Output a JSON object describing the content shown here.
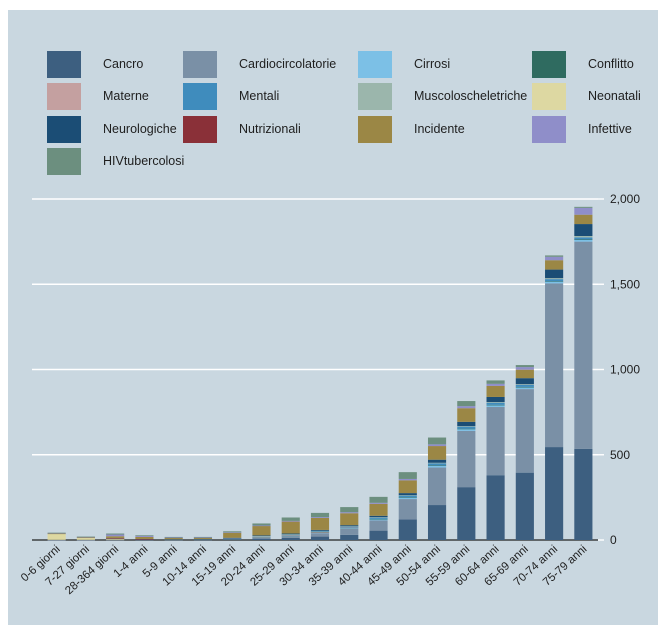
{
  "chart_data": {
    "type": "bar",
    "stacked": true,
    "categories": [
      "0-6 giorni",
      "7-27 giorni",
      "28-364 giorni",
      "1-4 anni",
      "5-9 anni",
      "10-14 anni",
      "15-19 anni",
      "20-24 anni",
      "25-29 anni",
      "30-34 anni",
      "35-39 anni",
      "40-44 anni",
      "45-49 anni",
      "50-54 anni",
      "55-59 anni",
      "60-64 anni",
      "65-69 anni",
      "70-74 anni",
      "75-79 anni"
    ],
    "ylim": [
      0,
      2000
    ],
    "yticks": [
      0,
      500,
      1000,
      1500,
      2000
    ],
    "ytick_labels": [
      "0",
      "500",
      "1,000",
      "1,500",
      "2,000"
    ],
    "y_axis_position": "right",
    "grid": true,
    "legend_position": "top",
    "series": [
      {
        "name": "Cancro",
        "color": "#3d5f80",
        "values": [
          0,
          0,
          0,
          2,
          2,
          2,
          4,
          8,
          12,
          20,
          30,
          55,
          120,
          205,
          310,
          380,
          395,
          545,
          535
        ]
      },
      {
        "name": "Cardiocircolatorie",
        "color": "#7a90a6",
        "values": [
          1,
          1,
          2,
          2,
          1,
          2,
          3,
          6,
          10,
          20,
          35,
          60,
          120,
          220,
          330,
          400,
          490,
          960,
          1215
        ]
      },
      {
        "name": "Cirrosi",
        "color": "#7cc0e6",
        "values": [
          0,
          0,
          0,
          0,
          0,
          0,
          0,
          2,
          3,
          4,
          6,
          8,
          10,
          12,
          12,
          12,
          12,
          12,
          12
        ]
      },
      {
        "name": "Conflitto",
        "color": "#2f6b60",
        "values": [
          0,
          0,
          0,
          0,
          0,
          0,
          1,
          1,
          1,
          1,
          1,
          1,
          1,
          1,
          1,
          1,
          1,
          1,
          1
        ]
      },
      {
        "name": "Materne",
        "color": "#c4a0a0",
        "values": [
          0,
          0,
          0,
          0,
          0,
          0,
          1,
          2,
          2,
          2,
          1,
          0,
          0,
          0,
          0,
          0,
          0,
          0,
          0
        ]
      },
      {
        "name": "Mentali",
        "color": "#3f8cbd",
        "values": [
          0,
          0,
          0,
          0,
          0,
          0,
          2,
          4,
          5,
          6,
          7,
          8,
          10,
          12,
          12,
          12,
          12,
          12,
          12
        ]
      },
      {
        "name": "Muscoloscheletriche",
        "color": "#9bb6ac",
        "values": [
          0,
          0,
          0,
          0,
          0,
          0,
          0,
          1,
          1,
          1,
          1,
          2,
          2,
          3,
          3,
          4,
          4,
          6,
          8
        ]
      },
      {
        "name": "Neonatali",
        "color": "#ddd8a2",
        "values": [
          35,
          12,
          8,
          0,
          0,
          0,
          0,
          0,
          0,
          0,
          0,
          0,
          0,
          0,
          0,
          0,
          0,
          0,
          0
        ]
      },
      {
        "name": "Neurologiche",
        "color": "#1b4d75",
        "values": [
          0,
          0,
          1,
          1,
          1,
          1,
          2,
          3,
          4,
          5,
          6,
          8,
          12,
          18,
          25,
          30,
          35,
          50,
          70
        ]
      },
      {
        "name": "Nutrizionali",
        "color": "#8a3038",
        "values": [
          0,
          0,
          1,
          1,
          0,
          0,
          0,
          0,
          0,
          0,
          0,
          0,
          0,
          0,
          0,
          0,
          0,
          0,
          0
        ]
      },
      {
        "name": "Incidente",
        "color": "#9b8745",
        "values": [
          2,
          2,
          10,
          12,
          8,
          8,
          30,
          55,
          70,
          70,
          70,
          70,
          75,
          80,
          80,
          65,
          50,
          55,
          55
        ]
      },
      {
        "name": "Infettive",
        "color": "#8f8ec9",
        "values": [
          3,
          3,
          10,
          6,
          3,
          2,
          2,
          3,
          4,
          5,
          6,
          6,
          8,
          10,
          12,
          12,
          15,
          20,
          40
        ]
      },
      {
        "name": "HIVtubercolosi",
        "color": "#6c8f7f",
        "values": [
          2,
          2,
          6,
          4,
          3,
          3,
          6,
          12,
          20,
          25,
          30,
          35,
          40,
          40,
          30,
          20,
          12,
          8,
          6
        ]
      }
    ]
  }
}
